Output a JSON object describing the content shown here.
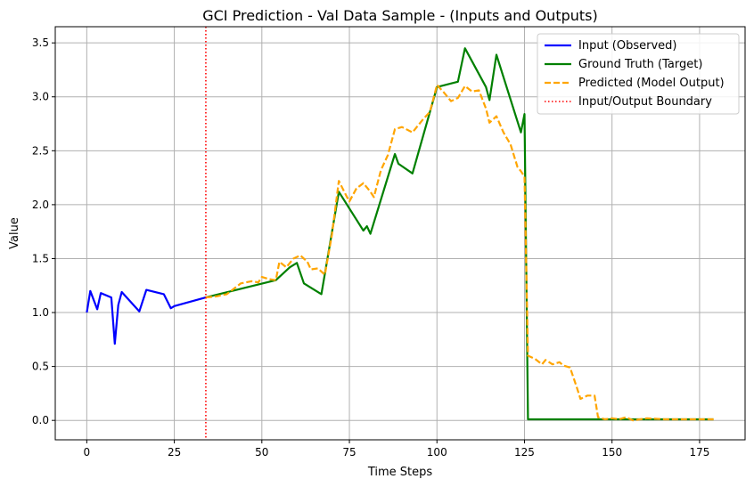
{
  "chart_data": {
    "type": "line",
    "title": "GCI Prediction - Val Data Sample - (Inputs and Outputs)",
    "xlabel": "Time Steps",
    "ylabel": "Value",
    "xlim": [
      -9,
      188
    ],
    "ylim": [
      -0.18,
      3.65
    ],
    "xticks": [
      0,
      25,
      50,
      75,
      100,
      125,
      150,
      175
    ],
    "yticks": [
      0.0,
      0.5,
      1.0,
      1.5,
      2.0,
      2.5,
      3.0,
      3.5
    ],
    "xtick_labels": [
      "0",
      "25",
      "50",
      "75",
      "100",
      "125",
      "150",
      "175"
    ],
    "ytick_labels": [
      "0.0",
      "0.5",
      "1.0",
      "1.5",
      "2.0",
      "2.5",
      "3.0",
      "3.5"
    ],
    "grid": true,
    "legend_position": "top-right",
    "boundary": {
      "name": "Input/Output Boundary",
      "x": 34,
      "color": "#ff0000",
      "style": "dotted"
    },
    "series": [
      {
        "name": "Input (Observed)",
        "color": "#0000ff",
        "style": "solid",
        "x": [
          0,
          1,
          3,
          4,
          7,
          8,
          9,
          10,
          15,
          17,
          22,
          24,
          25,
          34
        ],
        "y": [
          1.0,
          1.2,
          1.03,
          1.18,
          1.14,
          0.71,
          1.07,
          1.19,
          1.01,
          1.21,
          1.17,
          1.04,
          1.06,
          1.14
        ]
      },
      {
        "name": "Ground Truth (Target)",
        "color": "#008000",
        "style": "solid",
        "x": [
          34,
          54,
          58,
          60,
          62,
          67,
          72,
          79,
          80,
          81,
          88,
          89,
          93,
          100,
          106,
          108,
          114,
          115,
          117,
          124,
          125,
          126,
          135,
          145,
          150,
          160,
          170,
          179
        ],
        "y": [
          1.14,
          1.3,
          1.42,
          1.46,
          1.27,
          1.17,
          2.12,
          1.76,
          1.8,
          1.73,
          2.47,
          2.38,
          2.29,
          3.09,
          3.14,
          3.45,
          3.09,
          2.97,
          3.39,
          2.67,
          2.84,
          0.01,
          0.01,
          0.01,
          0.01,
          0.01,
          0.01,
          0.01
        ]
      },
      {
        "name": "Predicted (Model Output)",
        "color": "#ffa500",
        "style": "dashed",
        "x": [
          34,
          37,
          40,
          44,
          47,
          49,
          50,
          52,
          54,
          55,
          57,
          59,
          61,
          63,
          64,
          66,
          68,
          70,
          72,
          74,
          75,
          77,
          79,
          81,
          82,
          84,
          86,
          88,
          90,
          93,
          96,
          98,
          100,
          102,
          104,
          106,
          108,
          110,
          112,
          114,
          115,
          117,
          119,
          121,
          123,
          124,
          125,
          126,
          128,
          130,
          131,
          133,
          135,
          136,
          138,
          140,
          141,
          143,
          145,
          146,
          148,
          150,
          152,
          154,
          156,
          158,
          160,
          165,
          170,
          175,
          179
        ],
        "y": [
          1.14,
          1.15,
          1.17,
          1.27,
          1.29,
          1.28,
          1.33,
          1.31,
          1.3,
          1.47,
          1.42,
          1.5,
          1.53,
          1.47,
          1.4,
          1.41,
          1.35,
          1.72,
          2.22,
          2.09,
          2.03,
          2.15,
          2.2,
          2.12,
          2.07,
          2.32,
          2.46,
          2.7,
          2.72,
          2.67,
          2.79,
          2.86,
          3.11,
          3.04,
          2.96,
          2.99,
          3.1,
          3.05,
          3.06,
          2.89,
          2.76,
          2.82,
          2.67,
          2.56,
          2.35,
          2.31,
          2.26,
          0.6,
          0.57,
          0.52,
          0.56,
          0.52,
          0.54,
          0.51,
          0.49,
          0.3,
          0.2,
          0.23,
          0.23,
          0.03,
          0.01,
          0.02,
          0.01,
          0.03,
          0.0,
          0.01,
          0.02,
          0.01,
          0.01,
          0.01,
          0.01
        ]
      }
    ]
  }
}
